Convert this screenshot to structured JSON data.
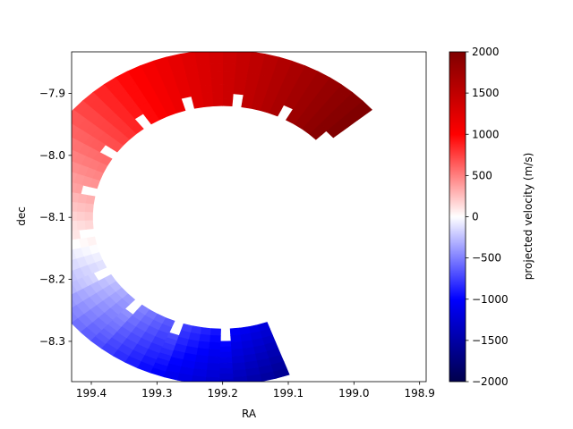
{
  "chart_data": {
    "type": "scatter",
    "title": "",
    "xlabel": "RA",
    "ylabel": "dec",
    "xlim": [
      199.43,
      198.89
    ],
    "ylim": [
      -8.365,
      -7.833
    ],
    "x_ticks": [
      199.4,
      199.3,
      199.2,
      199.1,
      199.0,
      198.9
    ],
    "x_tick_labels": [
      "199.4",
      "199.3",
      "199.2",
      "199.1",
      "199.0",
      "198.9"
    ],
    "y_ticks": [
      -7.9,
      -8.0,
      -8.1,
      -8.2,
      -8.3
    ],
    "y_tick_labels": [
      "−7.9",
      "−8.0",
      "−8.1",
      "−8.2",
      "−8.3"
    ],
    "colorbar": {
      "label": "projected velocity (m/s)",
      "cmap": "seismic",
      "range": [
        -2000,
        2000
      ],
      "ticks": [
        2000,
        1500,
        1000,
        500,
        0,
        -500,
        -1000,
        -1500,
        -2000
      ],
      "tick_labels": [
        "2000",
        "1500",
        "1000",
        "500",
        "0",
        "−500",
        "−1000",
        "−1500",
        "−2000"
      ]
    },
    "crescent": {
      "center_ra": 199.2,
      "center_dec": -8.1,
      "outer_radius_deg": 0.27,
      "inner_radius_deg": 0.18,
      "inner_radius_jitter_deg": 0.02,
      "angle_range_deg": [
        40,
        290
      ],
      "velocity_at_start_deg": 2000,
      "velocity_at_end_deg": -1200,
      "velocity_min": -2000,
      "grid": "on-sphere"
    }
  },
  "colors": {
    "seismic_low": "#00004c",
    "seismic_mid_low": "#0000ff",
    "seismic_zero": "#ffffff",
    "seismic_mid_high": "#ff0000",
    "seismic_high": "#800000"
  }
}
